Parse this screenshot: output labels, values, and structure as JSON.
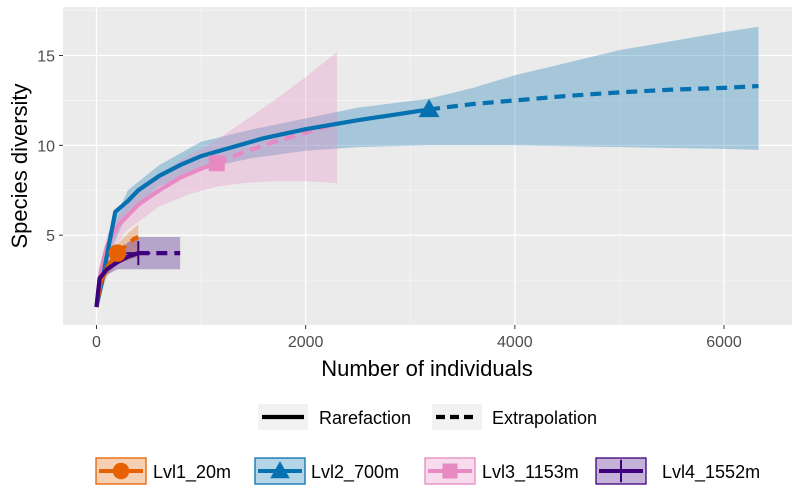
{
  "chart_data": {
    "type": "line",
    "xlabel": "Number of individuals",
    "ylabel": "Species diversity",
    "xlim": [
      -320,
      6650
    ],
    "ylim": [
      0,
      17.7
    ],
    "x_ticks": [
      0,
      2000,
      4000,
      6000
    ],
    "y_ticks": [
      5,
      10,
      15
    ],
    "x_tick_labels": [
      "0",
      "2000",
      "4000",
      "6000"
    ],
    "y_tick_labels": [
      "5",
      "10",
      "15"
    ],
    "grid": true,
    "legend_position": "bottom",
    "line_types": [
      {
        "label": "Rarefaction",
        "dash": "solid"
      },
      {
        "label": "Extrapolation",
        "dash": "dashed"
      }
    ],
    "series": [
      {
        "name": "Lvl1_20m",
        "color": "#E66101",
        "marker": "circle",
        "observed": {
          "x": 200,
          "y": 4.0
        },
        "rarefaction": [
          [
            0,
            1.0
          ],
          [
            40,
            2.4
          ],
          [
            100,
            3.2
          ],
          [
            150,
            3.6
          ],
          [
            200,
            4.0
          ]
        ],
        "extrapolation": [
          [
            200,
            4.0
          ],
          [
            280,
            4.4
          ],
          [
            360,
            4.8
          ],
          [
            400,
            4.9
          ]
        ],
        "ci": [
          [
            0,
            1.0,
            1.0
          ],
          [
            50,
            1.9,
            3.0
          ],
          [
            100,
            2.7,
            3.7
          ],
          [
            150,
            3.1,
            4.1
          ],
          [
            200,
            3.4,
            4.5
          ],
          [
            300,
            3.6,
            5.1
          ],
          [
            400,
            3.8,
            5.6
          ]
        ]
      },
      {
        "name": "Lvl2_700m",
        "color": "#0571B0",
        "marker": "triangle",
        "observed": {
          "x": 3180,
          "y": 12.0
        },
        "rarefaction": [
          [
            0,
            1.0
          ],
          [
            60,
            2.6
          ],
          [
            120,
            4.5
          ],
          [
            180,
            6.3
          ],
          [
            300,
            6.9
          ],
          [
            400,
            7.5
          ],
          [
            600,
            8.3
          ],
          [
            800,
            8.9
          ],
          [
            1000,
            9.4
          ],
          [
            1300,
            9.9
          ],
          [
            1600,
            10.4
          ],
          [
            2000,
            10.9
          ],
          [
            2500,
            11.4
          ],
          [
            3180,
            12.0
          ]
        ],
        "extrapolation": [
          [
            3180,
            12.0
          ],
          [
            3600,
            12.3
          ],
          [
            4000,
            12.5
          ],
          [
            4500,
            12.75
          ],
          [
            5000,
            12.95
          ],
          [
            5500,
            13.1
          ],
          [
            6000,
            13.2
          ],
          [
            6330,
            13.3
          ]
        ],
        "ci": [
          [
            0,
            1.0,
            1.0
          ],
          [
            120,
            3.9,
            5.2
          ],
          [
            300,
            6.3,
            7.5
          ],
          [
            600,
            7.7,
            8.9
          ],
          [
            1000,
            8.7,
            10.2
          ],
          [
            1500,
            9.3,
            10.9
          ],
          [
            2000,
            9.7,
            11.5
          ],
          [
            2500,
            9.9,
            12.1
          ],
          [
            3180,
            10.0,
            12.6
          ],
          [
            3600,
            10.0,
            13.2
          ],
          [
            4000,
            10.0,
            13.9
          ],
          [
            4500,
            9.95,
            14.6
          ],
          [
            5000,
            9.9,
            15.3
          ],
          [
            5500,
            9.85,
            15.8
          ],
          [
            6000,
            9.8,
            16.3
          ],
          [
            6330,
            9.75,
            16.6
          ]
        ]
      },
      {
        "name": "Lvl3_1153m",
        "color": "#E78AC3",
        "marker": "square",
        "observed": {
          "x": 1150,
          "y": 9.0
        },
        "rarefaction": [
          [
            0,
            1.0
          ],
          [
            40,
            3.0
          ],
          [
            100,
            4.4
          ],
          [
            200,
            5.5
          ],
          [
            400,
            6.7
          ],
          [
            600,
            7.5
          ],
          [
            800,
            8.2
          ],
          [
            1000,
            8.7
          ],
          [
            1150,
            9.0
          ]
        ],
        "extrapolation": [
          [
            1150,
            9.0
          ],
          [
            1400,
            9.6
          ],
          [
            1700,
            10.2
          ],
          [
            2000,
            10.7
          ],
          [
            2300,
            11.2
          ]
        ],
        "ci": [
          [
            0,
            1.0,
            1.0
          ],
          [
            100,
            3.8,
            5.0
          ],
          [
            300,
            5.3,
            6.9
          ],
          [
            600,
            6.6,
            8.4
          ],
          [
            900,
            7.3,
            9.5
          ],
          [
            1150,
            7.7,
            10.3
          ],
          [
            1400,
            7.9,
            11.3
          ],
          [
            1700,
            8.0,
            12.5
          ],
          [
            2000,
            8.0,
            13.8
          ],
          [
            2300,
            7.9,
            15.2
          ],
          [
            2300,
            7.1,
            15.3
          ]
        ]
      },
      {
        "name": "Lvl4_1552m",
        "color": "#3F007D",
        "marker": "cross",
        "observed": {
          "x": 400,
          "y": 4.0
        },
        "rarefaction": [
          [
            0,
            1.0
          ],
          [
            30,
            2.6
          ],
          [
            100,
            3.1
          ],
          [
            200,
            3.5
          ],
          [
            300,
            3.8
          ],
          [
            400,
            4.0
          ]
        ],
        "extrapolation": [
          [
            400,
            4.0
          ],
          [
            550,
            4.0
          ],
          [
            800,
            4.0
          ]
        ],
        "ci": [
          [
            0,
            1.0,
            1.0
          ],
          [
            50,
            2.2,
            3.0
          ],
          [
            100,
            2.8,
            3.5
          ],
          [
            200,
            3.1,
            4.0
          ],
          [
            300,
            3.1,
            4.6
          ],
          [
            400,
            3.1,
            4.9
          ],
          [
            800,
            3.1,
            4.9
          ]
        ]
      }
    ]
  }
}
